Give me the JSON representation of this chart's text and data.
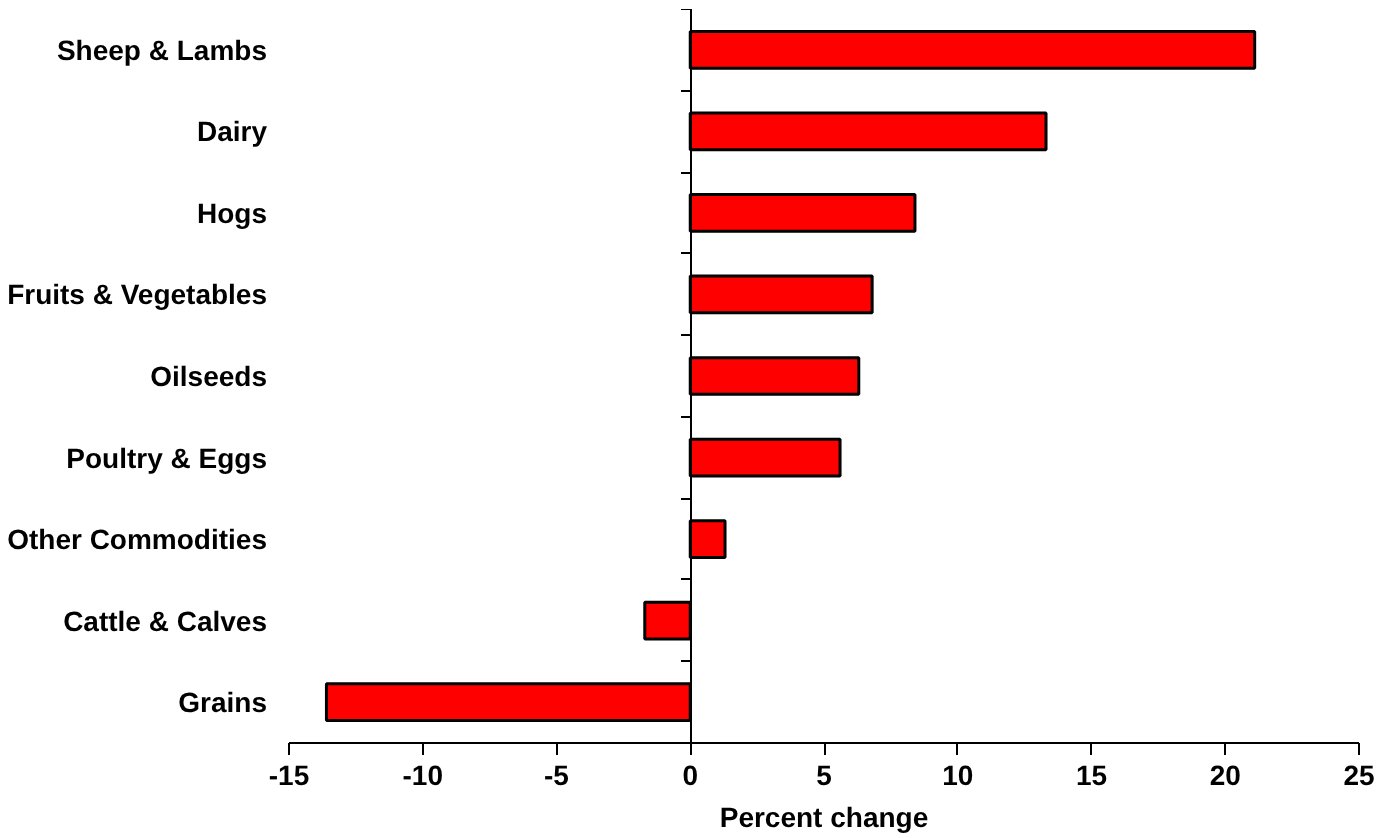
{
  "chart_data": {
    "type": "bar",
    "orientation": "horizontal",
    "xlabel": "Percent change",
    "categories": [
      "Sheep & Lambs",
      "Dairy",
      "Hogs",
      "Fruits & Vegetables",
      "Oilseeds",
      "Poultry & Eggs",
      "Other Commodities",
      "Cattle & Calves",
      "Grains"
    ],
    "values": [
      21.1,
      13.3,
      8.4,
      6.8,
      6.3,
      5.6,
      1.3,
      -1.7,
      -13.6
    ],
    "color": "#ff0000",
    "xlim": [
      -15,
      25
    ],
    "xticks": [
      -15,
      -10,
      -5,
      0,
      5,
      10,
      15,
      20,
      25
    ]
  }
}
